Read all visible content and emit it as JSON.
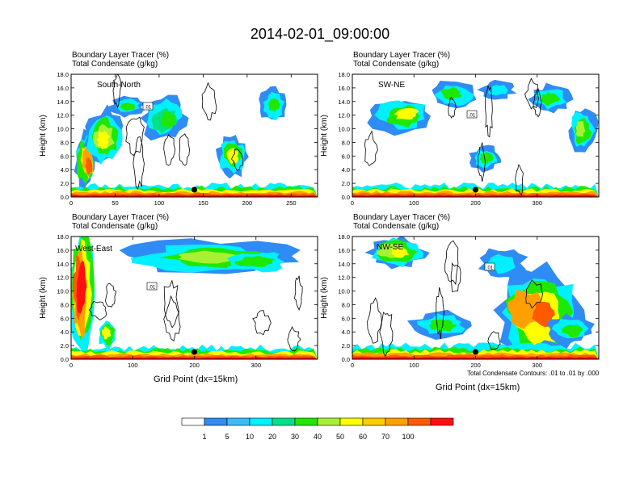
{
  "figure": {
    "title": "2014-02-01_09:00:00"
  },
  "chart_data": {
    "type": "heatmap",
    "colorbar": {
      "labels": [
        "1",
        "5",
        "10",
        "20",
        "30",
        "40",
        "50",
        "60",
        "70",
        "100"
      ],
      "colors": [
        "#ffffff",
        "#2f8cf5",
        "#38bdf8",
        "#00f0ff",
        "#00e087",
        "#1fe800",
        "#a8f034",
        "#ffff00",
        "#ffcc00",
        "#ffa000",
        "#ff5a00",
        "#ff1010"
      ]
    },
    "shared": {
      "title_line1": "Boundary Layer Tracer    (%)",
      "title_line2": "Total Condensate    (g/kg)",
      "ylabel": "Height (km)",
      "xlabel": "Grid Point (dx=15km)",
      "yticks": [
        "0.0",
        "2.0",
        "4.0",
        "6.0",
        "8.0",
        "10.0",
        "12.0",
        "14.0",
        "16.0",
        "18.0"
      ],
      "ylim": [
        0,
        18
      ],
      "contour_note": "Total Condensate Contours: .01 to .01 by .000"
    },
    "panels": [
      {
        "name": "South-North",
        "xlim": [
          0,
          280
        ],
        "xticks": [
          "0",
          "50",
          "100",
          "150",
          "200",
          "250"
        ],
        "xtick_values": [
          0,
          50,
          100,
          150,
          200,
          250
        ],
        "marker_x": 140,
        "contour_label": ".01"
      },
      {
        "name": "SW-NE",
        "xlim": [
          0,
          400
        ],
        "xticks": [
          "0",
          "100",
          "200",
          "300"
        ],
        "xtick_values": [
          0,
          100,
          200,
          300
        ],
        "marker_x": 200,
        "contour_label": ".01"
      },
      {
        "name": "West-East",
        "xlim": [
          0,
          400
        ],
        "xticks": [
          "0",
          "100",
          "200",
          "300"
        ],
        "xtick_values": [
          0,
          100,
          200,
          300
        ],
        "marker_x": 200,
        "contour_label": ".01"
      },
      {
        "name": "NW-SE",
        "xlim": [
          0,
          400
        ],
        "xticks": [
          "0",
          "100",
          "200",
          "300"
        ],
        "xtick_values": [
          0,
          100,
          200,
          300
        ],
        "marker_x": 200,
        "contour_label": ".01"
      }
    ]
  }
}
